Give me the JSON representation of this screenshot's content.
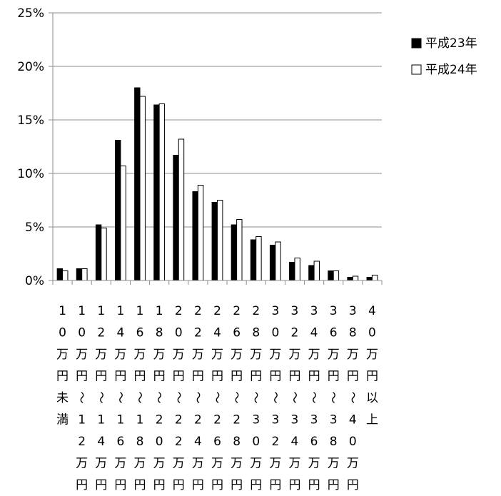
{
  "chart_data": {
    "type": "bar",
    "categories": [
      "10万円未満",
      "10万円〜12万円",
      "12万円〜14万円",
      "14万円〜16万円",
      "16万円〜18万円",
      "18万円〜20万円",
      "20万円〜22万円",
      "22万円〜24万円",
      "24万円〜26万円",
      "26万円〜28万円",
      "28万円〜30万円",
      "30万円〜32万円",
      "32万円〜34万円",
      "34万円〜36万円",
      "36万円〜38万円",
      "38万円〜40万円",
      "40万円以上"
    ],
    "category_label_lines": [
      [
        "1",
        "0",
        "万",
        "円",
        "未",
        "満"
      ],
      [
        "1",
        "0",
        "万",
        "円",
        "〜",
        "1",
        "2",
        "万",
        "円"
      ],
      [
        "1",
        "2",
        "万",
        "円",
        "〜",
        "1",
        "4",
        "万",
        "円"
      ],
      [
        "1",
        "4",
        "万",
        "円",
        "〜",
        "1",
        "6",
        "万",
        "円"
      ],
      [
        "1",
        "6",
        "万",
        "円",
        "〜",
        "1",
        "8",
        "万",
        "円"
      ],
      [
        "1",
        "8",
        "万",
        "円",
        "〜",
        "2",
        "0",
        "万",
        "円"
      ],
      [
        "2",
        "0",
        "万",
        "円",
        "〜",
        "2",
        "2",
        "万",
        "円"
      ],
      [
        "2",
        "2",
        "万",
        "円",
        "〜",
        "2",
        "4",
        "万",
        "円"
      ],
      [
        "2",
        "4",
        "万",
        "円",
        "〜",
        "2",
        "6",
        "万",
        "円"
      ],
      [
        "2",
        "6",
        "万",
        "円",
        "〜",
        "2",
        "8",
        "万",
        "円"
      ],
      [
        "2",
        "8",
        "万",
        "円",
        "〜",
        "3",
        "0",
        "万",
        "円"
      ],
      [
        "3",
        "0",
        "万",
        "円",
        "〜",
        "3",
        "2",
        "万",
        "円"
      ],
      [
        "3",
        "2",
        "万",
        "円",
        "〜",
        "3",
        "4",
        "万",
        "円"
      ],
      [
        "3",
        "4",
        "万",
        "円",
        "〜",
        "3",
        "6",
        "万",
        "円"
      ],
      [
        "3",
        "6",
        "万",
        "円",
        "〜",
        "3",
        "8",
        "万",
        "円"
      ],
      [
        "3",
        "8",
        "万",
        "円",
        "〜",
        "4",
        "0",
        "万",
        "円"
      ],
      [
        "4",
        "0",
        "万",
        "円",
        "以",
        "上"
      ]
    ],
    "series": [
      {
        "name": "平成23年",
        "color": "#000000",
        "values": [
          1.1,
          1.1,
          5.2,
          13.1,
          18.0,
          16.4,
          11.7,
          8.3,
          7.3,
          5.2,
          3.8,
          3.3,
          1.7,
          1.4,
          0.9,
          0.3,
          0.3
        ]
      },
      {
        "name": "平成24年",
        "color": "#ffffff",
        "values": [
          0.9,
          1.1,
          4.9,
          10.7,
          17.2,
          16.5,
          13.2,
          8.9,
          7.5,
          5.7,
          4.1,
          3.6,
          2.1,
          1.8,
          0.9,
          0.4,
          0.5
        ]
      }
    ],
    "y_ticks": [
      "0%",
      "5%",
      "10%",
      "15%",
      "20%",
      "25%"
    ],
    "ylim": [
      0,
      25
    ],
    "grid": true,
    "legend_position": "right"
  }
}
